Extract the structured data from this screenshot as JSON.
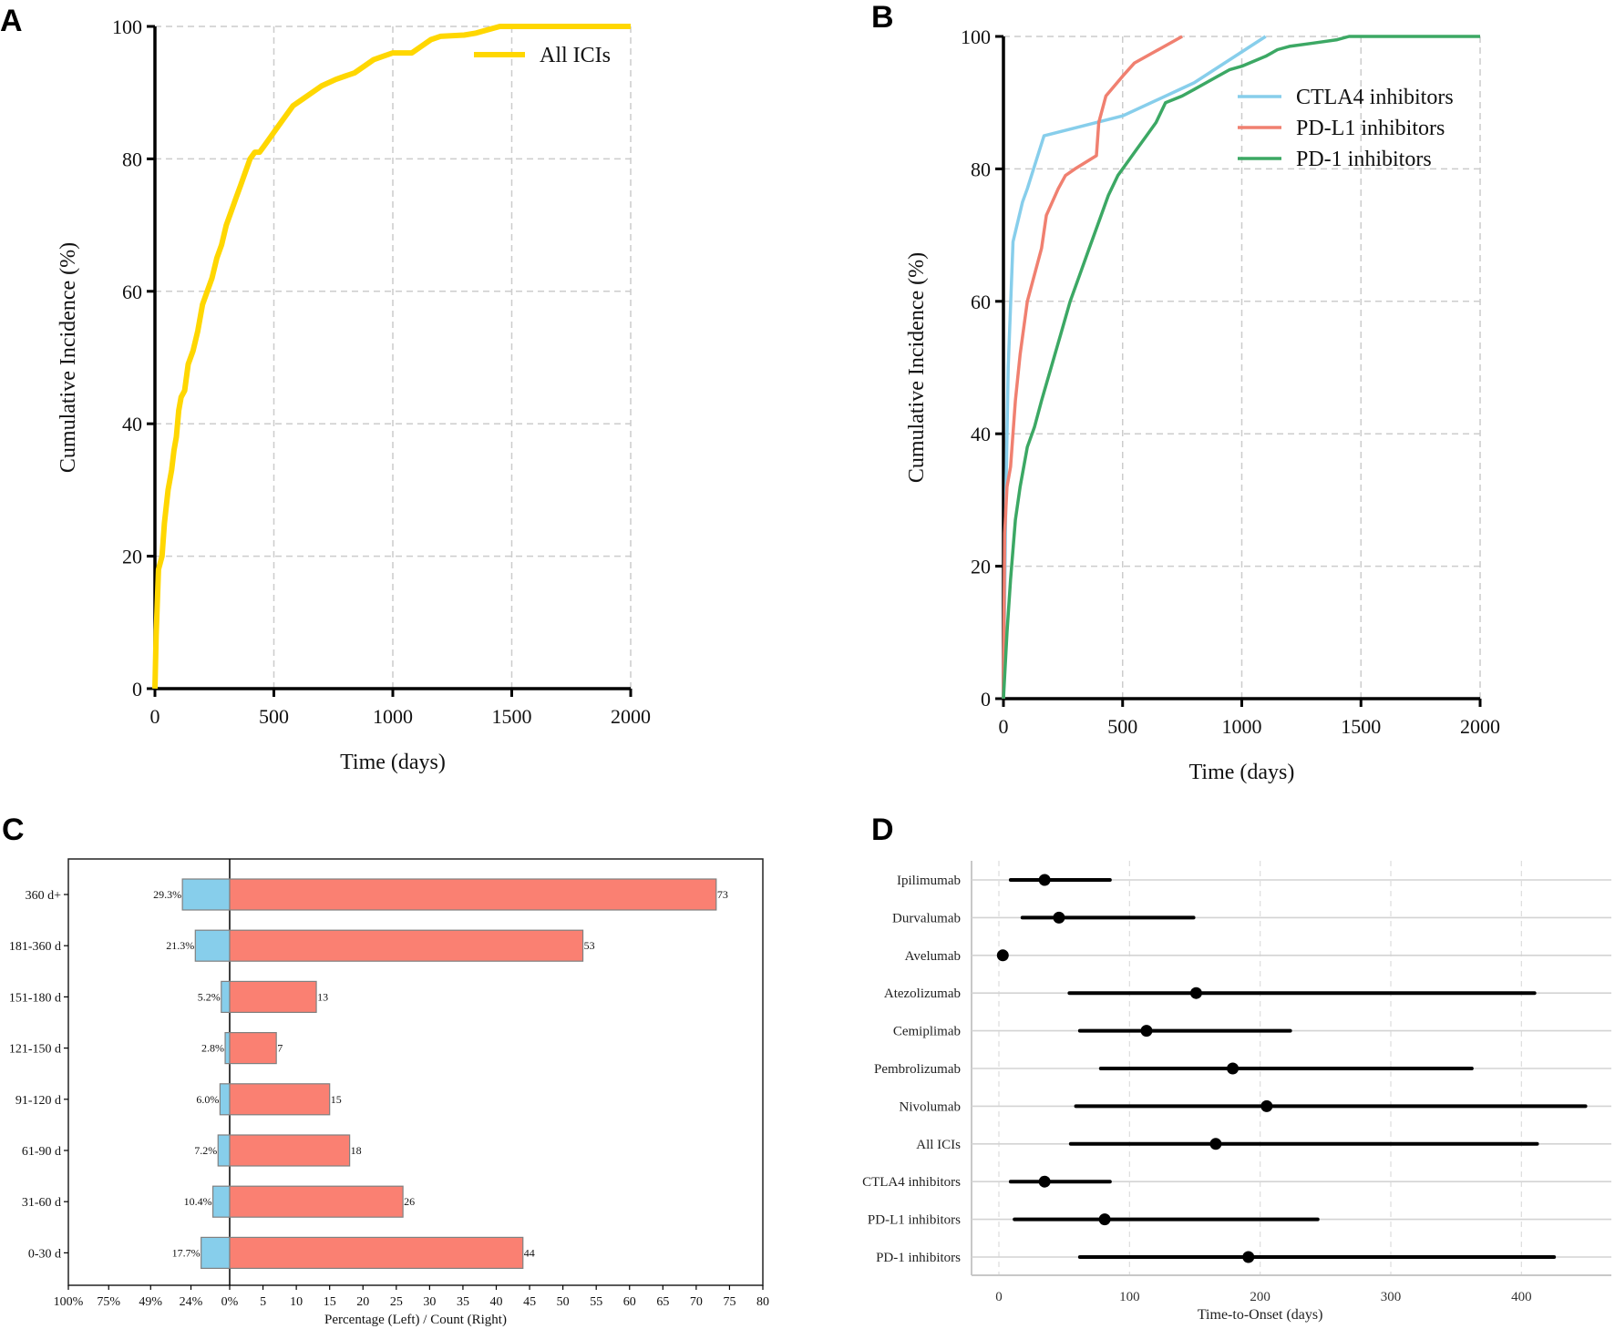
{
  "panel_letters": {
    "a": "A",
    "b": "B",
    "c": "C",
    "d": "D"
  },
  "colors": {
    "all_icis": "#FFD700",
    "ctla4": "#87CEEB",
    "pdl1": "#F08070",
    "pd1": "#3CA864",
    "pct_bar": "#87CEEB",
    "count_bar": "#FA8072",
    "d_marker": "#000000"
  },
  "chart_data": [
    {
      "id": "A",
      "type": "line",
      "title": "",
      "xlabel": "Time (days)",
      "ylabel": "Cumulative Incidence (%)",
      "xlim": [
        0,
        2000
      ],
      "ylim": [
        0,
        100
      ],
      "xticks": [
        "0",
        "500",
        "1000",
        "1500",
        "2000"
      ],
      "yticks": [
        "0",
        "20",
        "40",
        "60",
        "80",
        "100"
      ],
      "grid": true,
      "legend_position": "top-right",
      "series": [
        {
          "name": "All ICIs",
          "x": [
            0,
            5,
            15,
            30,
            40,
            55,
            70,
            80,
            90,
            100,
            110,
            125,
            140,
            160,
            180,
            200,
            220,
            240,
            260,
            280,
            300,
            320,
            340,
            360,
            380,
            400,
            420,
            440,
            460,
            480,
            500,
            540,
            580,
            620,
            660,
            700,
            760,
            800,
            840,
            880,
            920,
            960,
            1000,
            1040,
            1080,
            1120,
            1160,
            1200,
            1300,
            1350,
            1400,
            1450,
            2000
          ],
          "y": [
            0,
            8,
            18,
            20,
            25,
            30,
            33,
            36,
            38,
            42,
            44,
            45,
            49,
            51,
            54,
            58,
            60,
            62,
            65,
            67,
            70,
            72,
            74,
            76,
            78,
            80,
            81,
            81,
            82,
            83,
            84,
            86,
            88,
            89,
            90,
            91,
            92,
            92.5,
            93,
            94,
            95,
            95.5,
            96,
            96,
            96,
            97,
            98,
            98.5,
            98.7,
            99,
            99.5,
            100,
            100
          ]
        }
      ]
    },
    {
      "id": "B",
      "type": "line",
      "title": "",
      "xlabel": "Time (days)",
      "ylabel": "Cumulative Incidence (%)",
      "xlim": [
        0,
        2000
      ],
      "ylim": [
        0,
        100
      ],
      "xticks": [
        "0",
        "500",
        "1000",
        "1500",
        "2000"
      ],
      "yticks": [
        "0",
        "20",
        "40",
        "60",
        "80",
        "100"
      ],
      "grid": true,
      "legend_position": "upper-right",
      "series": [
        {
          "name": "CTLA4 inhibitors",
          "x": [
            0,
            10,
            20,
            40,
            80,
            100,
            170,
            500,
            800,
            1100
          ],
          "y": [
            0,
            30,
            50,
            69,
            75,
            77,
            85,
            88,
            93,
            100
          ]
        },
        {
          "name": "PD-L1 inhibitors",
          "x": [
            0,
            5,
            15,
            30,
            50,
            70,
            100,
            130,
            160,
            180,
            230,
            260,
            300,
            390,
            400,
            430,
            500,
            550,
            750
          ],
          "y": [
            0,
            25,
            32,
            35,
            45,
            52,
            60,
            64,
            68,
            73,
            77,
            79,
            80,
            82,
            87,
            91,
            94,
            96,
            100
          ]
        },
        {
          "name": "PD-1 inhibitors",
          "x": [
            0,
            15,
            30,
            50,
            70,
            100,
            130,
            160,
            200,
            240,
            280,
            320,
            360,
            400,
            440,
            480,
            520,
            560,
            600,
            640,
            680,
            750,
            800,
            850,
            900,
            950,
            1000,
            1100,
            1150,
            1200,
            1300,
            1400,
            1450,
            2000
          ],
          "y": [
            0,
            10,
            18,
            27,
            32,
            38,
            41,
            45,
            50,
            55,
            60,
            64,
            68,
            72,
            76,
            79,
            81,
            83,
            85,
            87,
            90,
            91,
            92,
            93,
            94,
            95,
            95.5,
            97,
            98,
            98.5,
            99,
            99.5,
            100,
            100
          ]
        }
      ]
    },
    {
      "id": "C",
      "type": "bar",
      "orientation": "horizontal-diverging",
      "title": "",
      "xlabel": "Percentage (Left) / Count (Right)",
      "ylabel": "",
      "categories": [
        "0-30 d",
        "31-60 d",
        "61-90 d",
        "91-120 d",
        "121-150 d",
        "151-180 d",
        "181-360 d",
        "360 d+"
      ],
      "left_tick_labels": [
        "100%",
        "75%",
        "49%",
        "24%",
        "0%"
      ],
      "right_ticks": [
        5,
        10,
        15,
        20,
        25,
        30,
        35,
        40,
        45,
        50,
        55,
        60,
        65,
        70,
        75,
        80
      ],
      "right_xlim": [
        0,
        80
      ],
      "series": [
        {
          "name": "Percentage",
          "side": "left",
          "values": [
            17.7,
            10.4,
            7.2,
            6.0,
            2.8,
            5.2,
            21.3,
            29.3
          ],
          "labels": [
            "17.7%",
            "10.4%",
            "7.2%",
            "6.0%",
            "2.8%",
            "5.2%",
            "21.3%",
            "29.3%"
          ]
        },
        {
          "name": "Count",
          "side": "right",
          "values": [
            44,
            26,
            18,
            15,
            7,
            13,
            53,
            73
          ],
          "labels": [
            "44",
            "26",
            "18",
            "15",
            "7",
            "13",
            "53",
            "73"
          ]
        }
      ]
    },
    {
      "id": "D",
      "type": "scatter",
      "subtype": "point-range",
      "title": "",
      "xlabel": "Time-to-Onset (days)",
      "ylabel": "",
      "xlim": [
        -20,
        470
      ],
      "xticks": [
        "0",
        "100",
        "200",
        "300",
        "400"
      ],
      "categories": [
        "Ipilimumab",
        "Durvalumab",
        "Avelumab",
        "Atezolizumab",
        "Cemiplimab",
        "Pembrolizumab",
        "Nivolumab",
        "All ICIs",
        "CTLA4 inhibitors",
        "PD-L1 inhibitors",
        "PD-1 inhibitors"
      ],
      "median": [
        35,
        46,
        3,
        151,
        113,
        179,
        205,
        166,
        35,
        81,
        191
      ],
      "low": [
        9,
        18,
        3,
        54,
        62,
        78,
        59,
        55,
        9,
        12,
        62
      ],
      "high": [
        85,
        149,
        3,
        410,
        223,
        362,
        449,
        412,
        85,
        244,
        425
      ]
    }
  ]
}
